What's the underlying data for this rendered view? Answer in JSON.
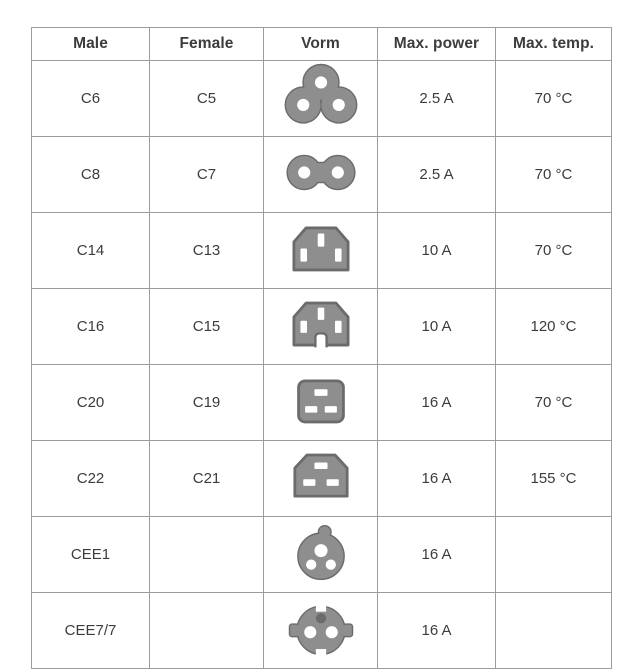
{
  "table": {
    "headers": [
      "Male",
      "Female",
      "Vorm",
      "Max. power",
      "Max. temp."
    ],
    "rows": [
      {
        "male": "C6",
        "female": "C5",
        "icon": "c6-cloverleaf",
        "max_power": "2.5 A",
        "max_temp": "70 °C"
      },
      {
        "male": "C8",
        "female": "C7",
        "icon": "c8-figure-eight",
        "max_power": "2.5 A",
        "max_temp": "70 °C"
      },
      {
        "male": "C14",
        "female": "C13",
        "icon": "c14-inlet",
        "max_power": "10 A",
        "max_temp": "70 °C"
      },
      {
        "male": "C16",
        "female": "C15",
        "icon": "c16-notched-inlet",
        "max_power": "10 A",
        "max_temp": "120 °C"
      },
      {
        "male": "C20",
        "female": "C19",
        "icon": "c20-inlet",
        "max_power": "16 A",
        "max_temp": "70 °C"
      },
      {
        "male": "C22",
        "female": "C21",
        "icon": "c22-inlet",
        "max_power": "16 A",
        "max_temp": "155 °C"
      },
      {
        "male": "CEE1",
        "female": "",
        "icon": "cee1-round-plug",
        "max_power": "16 A",
        "max_temp": ""
      },
      {
        "male": "CEE7/7",
        "female": "",
        "icon": "cee77-schuko-plug",
        "max_power": "16 A",
        "max_temp": ""
      }
    ],
    "colors": {
      "border": "#9c9c9c",
      "text": "#3c3c3c",
      "shape_fill": "#8e8e8e",
      "shape_outline": "#6b6b6b",
      "hole": "#ffffff"
    }
  }
}
